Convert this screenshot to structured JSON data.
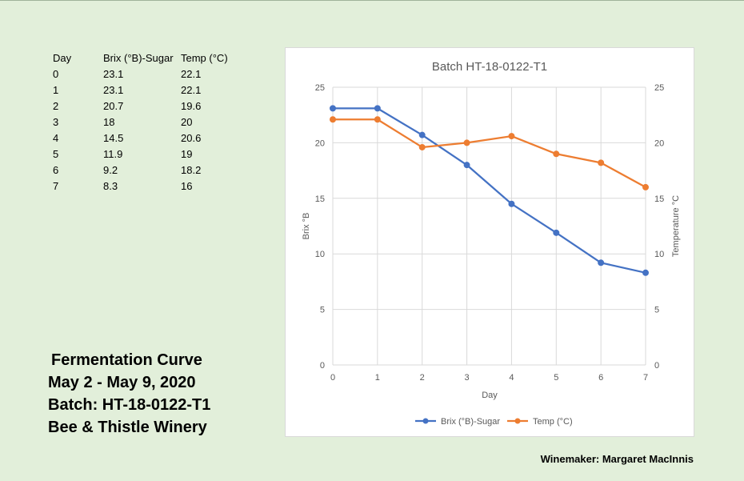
{
  "table": {
    "headers": [
      "Day",
      "Brix (°B)-Sugar",
      "Temp (°C)"
    ],
    "rows": [
      [
        "0",
        "23.1",
        "22.1"
      ],
      [
        "1",
        "23.1",
        "22.1"
      ],
      [
        "2",
        "20.7",
        "19.6"
      ],
      [
        "3",
        "18",
        "20"
      ],
      [
        "4",
        "14.5",
        "20.6"
      ],
      [
        "5",
        "11.9",
        "19"
      ],
      [
        "6",
        "9.2",
        "18.2"
      ],
      [
        "7",
        "8.3",
        "16"
      ]
    ]
  },
  "info": {
    "line1": "Fermentation Curve",
    "line2": "May 2 - May 9, 2020",
    "line3": "Batch: HT-18-0122-T1",
    "line4": "Bee & Thistle Winery"
  },
  "footer": {
    "winemaker": "Winemaker: Margaret MacInnis"
  },
  "chart_data": {
    "type": "line",
    "title": "Batch HT-18-0122-T1",
    "xlabel": "Day",
    "ylabel": "Brix °B",
    "y2label": "Temperature °C",
    "x": [
      0,
      1,
      2,
      3,
      4,
      5,
      6,
      7
    ],
    "xlim": [
      0,
      7
    ],
    "ylim": [
      0,
      25
    ],
    "y2lim": [
      0,
      25
    ],
    "yticks": [
      0,
      5,
      10,
      15,
      20,
      25
    ],
    "grid": true,
    "legend": "bottom",
    "series": [
      {
        "name": "Brix (°B)-Sugar",
        "axis": "left",
        "color": "#4472c4",
        "values": [
          23.1,
          23.1,
          20.7,
          18,
          14.5,
          11.9,
          9.2,
          8.3
        ]
      },
      {
        "name": "Temp (°C)",
        "axis": "right",
        "color": "#ed7d31",
        "values": [
          22.1,
          22.1,
          19.6,
          20,
          20.6,
          19,
          18.2,
          16
        ]
      }
    ]
  }
}
